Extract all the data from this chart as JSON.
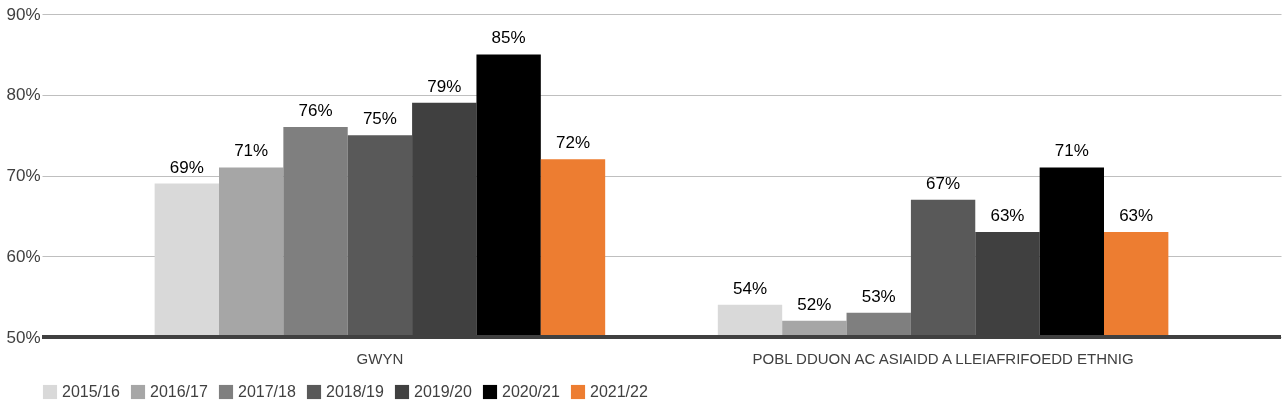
{
  "chart_data": {
    "type": "bar",
    "categories": [
      "GWYN",
      "POBL DDUON AC ASIAIDD A LLEIAFRIFOEDD ETHNIG"
    ],
    "series": [
      {
        "name": "2015/16",
        "color": "#d9d9d9",
        "values": [
          69,
          54
        ],
        "value_labels": [
          "69%",
          "54%"
        ]
      },
      {
        "name": "2016/17",
        "color": "#a6a6a6",
        "values": [
          71,
          52
        ],
        "value_labels": [
          "71%",
          "52%"
        ]
      },
      {
        "name": "2017/18",
        "color": "#7f7f7f",
        "values": [
          76,
          53
        ],
        "value_labels": [
          "76%",
          "53%"
        ]
      },
      {
        "name": "2018/19",
        "color": "#595959",
        "values": [
          75,
          67
        ],
        "value_labels": [
          "75%",
          "67%"
        ]
      },
      {
        "name": "2019/20",
        "color": "#404040",
        "values": [
          79,
          63
        ],
        "value_labels": [
          "79%",
          "63%"
        ]
      },
      {
        "name": "2020/21",
        "color": "#000000",
        "values": [
          85,
          71
        ],
        "value_labels": [
          "85%",
          "71%"
        ]
      },
      {
        "name": "2021/22",
        "color": "#ed7d31",
        "values": [
          72,
          63
        ],
        "value_labels": [
          "72%",
          "63%"
        ]
      }
    ],
    "ylim": [
      50,
      90
    ],
    "yticks": [
      {
        "value": 50,
        "label": "50%"
      },
      {
        "value": 60,
        "label": "60%"
      },
      {
        "value": 70,
        "label": "70%"
      },
      {
        "value": 80,
        "label": "80%"
      },
      {
        "value": 90,
        "label": "90%"
      }
    ],
    "grid": "y",
    "legend": "bottom"
  }
}
